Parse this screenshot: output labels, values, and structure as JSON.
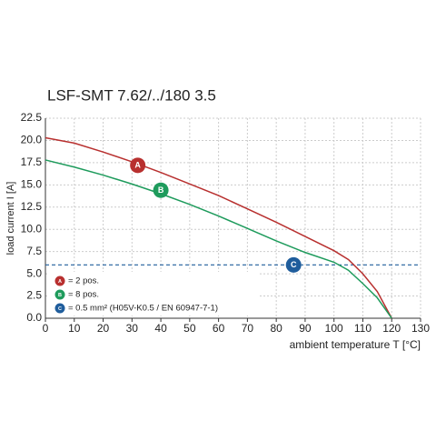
{
  "chart_data": {
    "type": "line",
    "title": "LSF-SMT 7.62/../180 3.5",
    "y_label": "load current I [A]",
    "x_label": "ambient temperature T [°C]",
    "xlim": [
      0,
      130
    ],
    "ylim": [
      0,
      22.5
    ],
    "xticks": [
      0,
      10,
      20,
      30,
      40,
      50,
      60,
      70,
      80,
      90,
      100,
      110,
      120,
      130
    ],
    "yticks": [
      {
        "value": 0,
        "label": "0.0"
      },
      2.5,
      {
        "value": 5,
        "label": "5.0"
      },
      7.5,
      {
        "value": 10,
        "label": "10.0"
      },
      12.5,
      {
        "value": 15,
        "label": "15.0"
      },
      17.5,
      {
        "value": 20,
        "label": "20.0"
      },
      22.5
    ],
    "grid": true,
    "legend": "lower left",
    "series": [
      {
        "name": "= 2 pos.",
        "marker_label": "A",
        "color": "#b8302f",
        "x": [
          0,
          10,
          20,
          30,
          40,
          50,
          60,
          70,
          80,
          90,
          100,
          105,
          110,
          115,
          120
        ],
        "values": [
          20.3,
          19.7,
          18.7,
          17.6,
          16.4,
          15.1,
          13.8,
          12.3,
          10.8,
          9.2,
          7.6,
          6.6,
          5.0,
          3.0,
          0
        ],
        "marker_at": [
          32,
          17.2
        ]
      },
      {
        "name": "= 8 pos.",
        "marker_label": "B",
        "color": "#1e9b5c",
        "x": [
          0,
          10,
          20,
          30,
          40,
          50,
          60,
          70,
          80,
          90,
          100,
          105,
          110,
          115,
          120
        ],
        "values": [
          17.8,
          17.0,
          16.1,
          15.1,
          14.0,
          12.8,
          11.5,
          10.1,
          8.7,
          7.4,
          6.3,
          5.4,
          3.9,
          2.3,
          0
        ],
        "marker_at": [
          40,
          14.4
        ]
      }
    ],
    "reference_line": {
      "name": "= 0.5 mm² (H05V-K0.5 / EN 60947-7-1)",
      "marker_label": "C",
      "color": "#1f5d9c",
      "value": 6,
      "marker_at": 86
    }
  }
}
